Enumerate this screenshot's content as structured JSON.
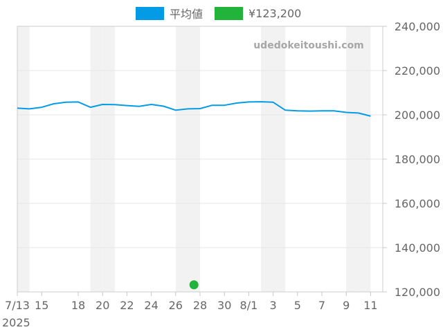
{
  "chart_data": {
    "type": "line",
    "watermark": "udedokeitoushi.com",
    "x_start_year_label": "2025",
    "x_tick_labels": [
      "7/13",
      "15",
      "18",
      "20",
      "22",
      "24",
      "26",
      "28",
      "30",
      "8/1",
      "3",
      "5",
      "7",
      "9",
      "11"
    ],
    "x_tick_dates": [
      "2025-07-13",
      "2025-07-15",
      "2025-07-18",
      "2025-07-20",
      "2025-07-22",
      "2025-07-24",
      "2025-07-26",
      "2025-07-28",
      "2025-07-30",
      "2025-08-01",
      "2025-08-03",
      "2025-08-05",
      "2025-08-07",
      "2025-08-09",
      "2025-08-11"
    ],
    "x_range": [
      "2025-07-13",
      "2025-08-12"
    ],
    "y_tick_labels": [
      "240,000",
      "220,000",
      "200,000",
      "180,000",
      "160,000",
      "140,000",
      "120,000"
    ],
    "ylim": [
      120000,
      240000
    ],
    "y_axis_side": "right",
    "grid": true,
    "legend_position": "top-center",
    "series": [
      {
        "name": "平均値",
        "kind": "line",
        "color": "#039be5",
        "points": [
          {
            "date": "2025-07-13",
            "value": 203000
          },
          {
            "date": "2025-07-14",
            "value": 202700
          },
          {
            "date": "2025-07-15",
            "value": 203400
          },
          {
            "date": "2025-07-16",
            "value": 205000
          },
          {
            "date": "2025-07-17",
            "value": 205700
          },
          {
            "date": "2025-07-18",
            "value": 205800
          },
          {
            "date": "2025-07-19",
            "value": 203400
          },
          {
            "date": "2025-07-20",
            "value": 204700
          },
          {
            "date": "2025-07-21",
            "value": 204600
          },
          {
            "date": "2025-07-22",
            "value": 204200
          },
          {
            "date": "2025-07-23",
            "value": 203800
          },
          {
            "date": "2025-07-24",
            "value": 204700
          },
          {
            "date": "2025-07-25",
            "value": 203900
          },
          {
            "date": "2025-07-26",
            "value": 202100
          },
          {
            "date": "2025-07-27",
            "value": 202700
          },
          {
            "date": "2025-07-28",
            "value": 202800
          },
          {
            "date": "2025-07-29",
            "value": 204300
          },
          {
            "date": "2025-07-30",
            "value": 204300
          },
          {
            "date": "2025-07-31",
            "value": 205300
          },
          {
            "date": "2025-08-01",
            "value": 205800
          },
          {
            "date": "2025-08-02",
            "value": 205900
          },
          {
            "date": "2025-08-03",
            "value": 205700
          },
          {
            "date": "2025-08-04",
            "value": 202100
          },
          {
            "date": "2025-08-05",
            "value": 201800
          },
          {
            "date": "2025-08-06",
            "value": 201700
          },
          {
            "date": "2025-08-07",
            "value": 201800
          },
          {
            "date": "2025-08-08",
            "value": 201800
          },
          {
            "date": "2025-08-09",
            "value": 201100
          },
          {
            "date": "2025-08-10",
            "value": 200800
          },
          {
            "date": "2025-08-11",
            "value": 199400
          }
        ]
      },
      {
        "name": "¥123,200",
        "kind": "point",
        "color": "#22b33a",
        "points": [
          {
            "date": "2025-07-27",
            "value": 123200
          }
        ]
      }
    ]
  }
}
